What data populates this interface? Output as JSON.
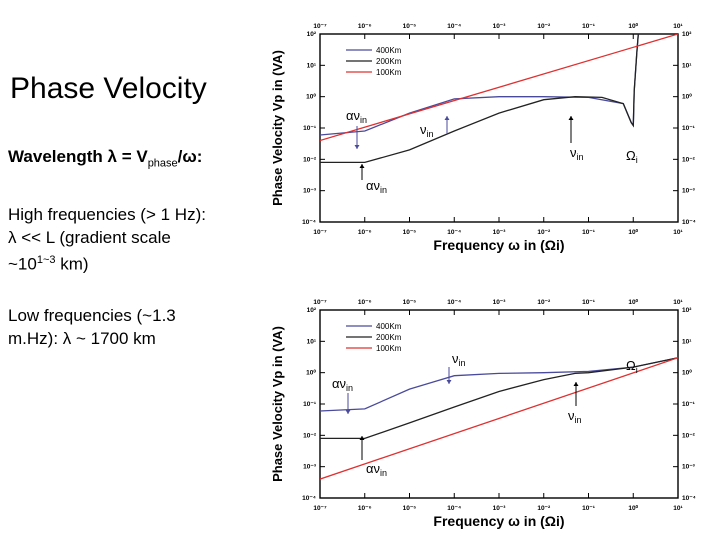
{
  "title": "Phase Velocity",
  "bullets": {
    "b1_prefix": "Wavelength ",
    "b1_lambda": "λ",
    "b1_eq": " = V",
    "b1_sub": "phase",
    "b1_omega": "/ω:",
    "b2_line1": "High frequencies (> 1 Hz):",
    "b2_line2": "λ << L (gradient scale",
    "b2_line3_pre": "~10",
    "b2_line3_sup": "1~3",
    "b2_line3_post": " km)",
    "b3_line1": "Low frequencies (~1.3",
    "b3_line2": "m.Hz): λ ~ 1700 km"
  },
  "chart_data": [
    {
      "type": "line",
      "xlabel": "Frequency ω in (Ωi)",
      "ylabel": "Phase Velocity Vp in (VA)",
      "xscale": "log",
      "yscale": "log",
      "xlim": [
        1e-07,
        10
      ],
      "ylim": [
        0.0001,
        100
      ],
      "x_ticks": [
        "10⁻⁷",
        "10⁻⁶",
        "10⁻⁵",
        "10⁻⁴",
        "10⁻³",
        "10⁻²",
        "10⁻¹",
        "10⁰",
        "10¹"
      ],
      "y_ticks": [
        "10²",
        "10¹",
        "10⁰",
        "10⁻¹",
        "10⁻²",
        "10⁻³",
        "10⁻⁴"
      ],
      "legend": [
        "400Km",
        "200Km",
        "100Km"
      ],
      "legend_position": "top-left",
      "colors": {
        "400Km": "#4a4a9c",
        "200Km": "#222222",
        "100Km": "#e03030"
      },
      "annotations": [
        "αν_in",
        "ν_in",
        "ν_in",
        "αν_in",
        "Ω_i"
      ],
      "series": [
        {
          "name": "400Km",
          "points": [
            [
              1e-07,
              0.06
            ],
            [
              1e-06,
              0.08
            ],
            [
              1e-05,
              0.3
            ],
            [
              0.0001,
              0.85
            ],
            [
              0.001,
              1.0
            ],
            [
              0.01,
              1.0
            ],
            [
              0.1,
              0.95
            ],
            [
              0.6,
              0.6
            ],
            [
              0.9,
              0.15
            ],
            [
              1.0,
              0.12
            ],
            [
              1.05,
              1.5
            ],
            [
              1.2,
              25
            ],
            [
              1.3,
              100
            ]
          ]
        },
        {
          "name": "200Km",
          "points": [
            [
              1e-07,
              0.008
            ],
            [
              1e-06,
              0.008
            ],
            [
              1e-05,
              0.02
            ],
            [
              0.0001,
              0.08
            ],
            [
              0.001,
              0.3
            ],
            [
              0.01,
              0.8
            ],
            [
              0.05,
              1.0
            ],
            [
              0.2,
              0.95
            ],
            [
              0.6,
              0.6
            ],
            [
              0.9,
              0.15
            ],
            [
              1.0,
              0.12
            ],
            [
              1.05,
              1.5
            ],
            [
              1.2,
              25
            ],
            [
              1.3,
              100
            ]
          ]
        },
        {
          "name": "100Km",
          "points": [
            [
              1e-07,
              0.04
            ],
            [
              10,
              100
            ]
          ]
        }
      ]
    },
    {
      "type": "line",
      "xlabel": "Frequency ω in (Ωi)",
      "ylabel": "Phase Velocity Vp in (VA)",
      "xscale": "log",
      "yscale": "log",
      "xlim": [
        1e-07,
        10
      ],
      "ylim": [
        0.0001,
        100
      ],
      "x_ticks": [
        "10⁻⁷",
        "10⁻⁶",
        "10⁻⁵",
        "10⁻⁴",
        "10⁻³",
        "10⁻²",
        "10⁻¹",
        "10⁰",
        "10¹"
      ],
      "y_ticks": [
        "10²",
        "10¹",
        "10⁰",
        "10⁻¹",
        "10⁻²",
        "10⁻³",
        "10⁻⁴"
      ],
      "legend": [
        "400Km",
        "200Km",
        "100Km"
      ],
      "legend_position": "top-left",
      "colors": {
        "400Km": "#4a4a9c",
        "200Km": "#222222",
        "100Km": "#e03030"
      },
      "annotations": [
        "αν_in",
        "ν_in",
        "Ω_i",
        "ν_in",
        "αν_in"
      ],
      "series": [
        {
          "name": "400Km",
          "points": [
            [
              1e-07,
              0.06
            ],
            [
              1e-06,
              0.07
            ],
            [
              1e-05,
              0.3
            ],
            [
              0.0001,
              0.8
            ],
            [
              0.001,
              0.95
            ],
            [
              0.01,
              1.0
            ],
            [
              0.1,
              1.1
            ],
            [
              1,
              1.5
            ],
            [
              10,
              3
            ]
          ]
        },
        {
          "name": "200Km",
          "points": [
            [
              1e-07,
              0.008
            ],
            [
              1e-06,
              0.008
            ],
            [
              1e-05,
              0.025
            ],
            [
              0.0001,
              0.08
            ],
            [
              0.001,
              0.25
            ],
            [
              0.01,
              0.6
            ],
            [
              0.05,
              0.95
            ],
            [
              0.1,
              1.0
            ],
            [
              1,
              1.5
            ],
            [
              10,
              3
            ]
          ]
        },
        {
          "name": "100Km",
          "points": [
            [
              1e-07,
              0.0004
            ],
            [
              10,
              3
            ]
          ]
        }
      ]
    }
  ]
}
